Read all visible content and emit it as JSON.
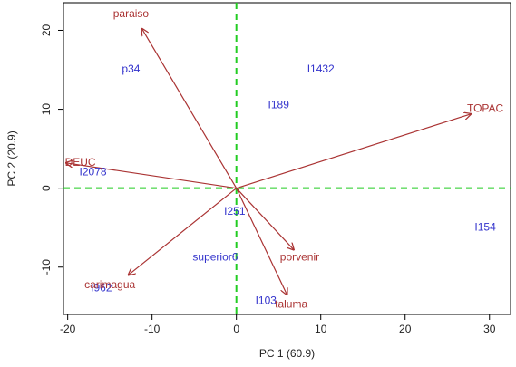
{
  "chart_data": {
    "type": "scatter",
    "title": "",
    "xlabel": "PC 1 (60.9)",
    "ylabel": "PC 2 (20.9)",
    "xlim": [
      -20.5,
      32.5
    ],
    "ylim": [
      -16,
      23.5
    ],
    "xticks": [
      -20,
      -10,
      0,
      10,
      20,
      30
    ],
    "yticks": [
      -10,
      0,
      10,
      20
    ],
    "reference_lines": {
      "x": 0,
      "y": 0,
      "color": "#22cc22",
      "style": "dashed"
    },
    "colors": {
      "genotype": "#3333cc",
      "environment": "#aa3333",
      "frame": "#000000"
    },
    "genotypes": [
      {
        "label": "p34",
        "x": -12.5,
        "y": 15
      },
      {
        "label": "I1432",
        "x": 10,
        "y": 15
      },
      {
        "label": "I189",
        "x": 5,
        "y": 10.5
      },
      {
        "label": "I2078",
        "x": -17,
        "y": 2
      },
      {
        "label": "I251",
        "x": -0.2,
        "y": -3
      },
      {
        "label": "I154",
        "x": 29.5,
        "y": -5
      },
      {
        "label": "superior6",
        "x": -2.5,
        "y": -8.8
      },
      {
        "label": "I962",
        "x": -16,
        "y": -12.7
      },
      {
        "label": "I103",
        "x": 3.5,
        "y": -14.3
      }
    ],
    "environments": [
      {
        "label": "paraiso",
        "x": -11.2,
        "y": 20.2,
        "label_x": -12.5,
        "label_y": 22
      },
      {
        "label": "TOPAC",
        "x": 27.8,
        "y": 9.4,
        "label_x": 29.5,
        "label_y": 10
      },
      {
        "label": "DEUC",
        "x": -20.2,
        "y": 3.2,
        "label_x": -18.5,
        "label_y": 3.2
      },
      {
        "label": "porvenir",
        "x": 6.8,
        "y": -7.8,
        "label_x": 7.5,
        "label_y": -8.8
      },
      {
        "label": "taluma",
        "x": 6,
        "y": -13.5,
        "label_x": 6.5,
        "label_y": -14.8
      },
      {
        "label": "carimagua",
        "x": -12.8,
        "y": -11,
        "label_x": -15,
        "label_y": -12.3
      }
    ]
  }
}
